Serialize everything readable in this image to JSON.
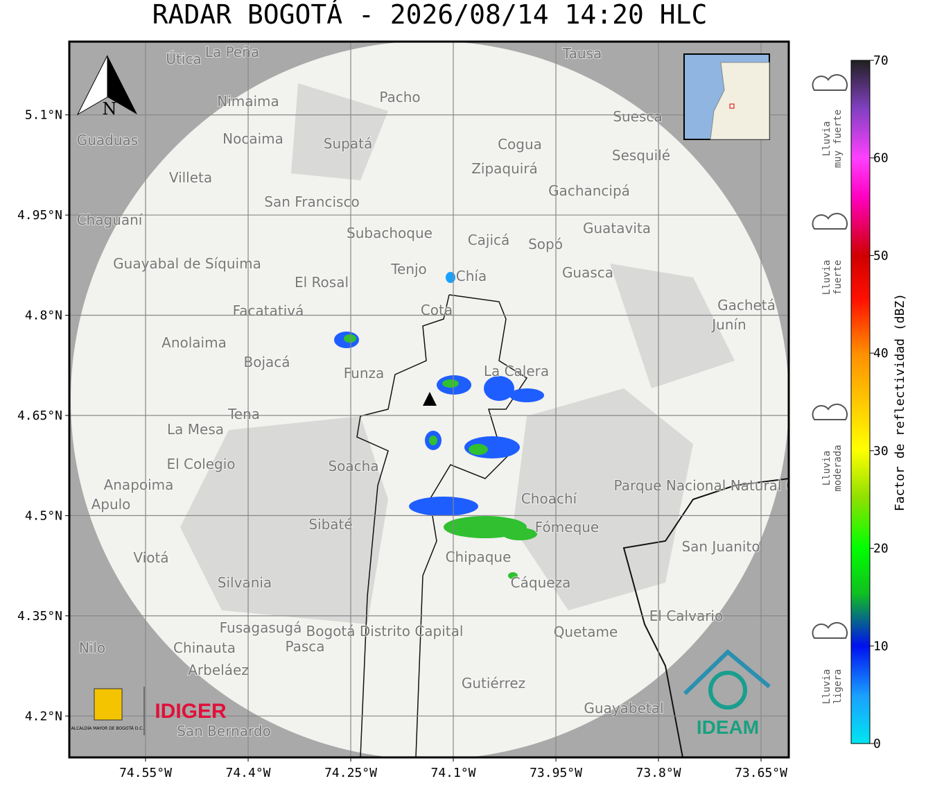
{
  "title": "RADAR BOGOTÁ - 2026/08/14 14:20 HLC",
  "map": {
    "xlim": [
      -74.6615,
      -73.6095
    ],
    "ylim": [
      4.138,
      5.2097
    ],
    "xticks": [
      {
        "value": -74.55,
        "label": "74.55°W"
      },
      {
        "value": -74.4,
        "label": "74.4°W"
      },
      {
        "value": -74.25,
        "label": "74.25°W"
      },
      {
        "value": -74.1,
        "label": "74.1°W"
      },
      {
        "value": -73.95,
        "label": "73.95°W"
      },
      {
        "value": -73.8,
        "label": "73.8°W"
      },
      {
        "value": -73.65,
        "label": "73.65°W"
      }
    ],
    "yticks": [
      {
        "value": 5.1,
        "label": "5.1°N"
      },
      {
        "value": 4.95,
        "label": "4.95°N"
      },
      {
        "value": 4.8,
        "label": "4.8°N"
      },
      {
        "value": 4.65,
        "label": "4.65°N"
      },
      {
        "value": 4.5,
        "label": "4.5°N"
      },
      {
        "value": 4.35,
        "label": "4.35°N"
      },
      {
        "value": 4.2,
        "label": "4.2°N"
      }
    ],
    "north": "N",
    "places": [
      "La Peña",
      "Útica",
      "Tausa",
      "Pacho",
      "Nimaima",
      "Nocaima",
      "Supatá",
      "Guaduas",
      "Suesca",
      "Cogua",
      "Sesquilé",
      "Zipaquirá",
      "Villeta",
      "Gachancipá",
      "San Francisco",
      "Chaguaní",
      "Guatavita",
      "Subachoque",
      "Cajicá",
      "Sopó",
      "Guayabal de Síquima",
      "Tenjo",
      "Chía",
      "Guasca",
      "El Rosal",
      "Cota",
      "Facatativá",
      "Gachetá",
      "Junín",
      "Anolaima",
      "Bojacá",
      "Funza",
      "La Calera",
      "Tena",
      "La Mesa",
      "El Colegio",
      "Soacha",
      "Parque Nacional Natural Chingaza",
      "Anapoima",
      "Apulo",
      "Choachí",
      "Sibaté",
      "Fómeque",
      "San Juanito",
      "Viotá",
      "Chipaque",
      "Silvania",
      "Cáqueza",
      "El Calvario",
      "Fusagasugá",
      "Bogotá Distrito Capital",
      "Quetame",
      "Chinauta",
      "Pasca",
      "Nilo",
      "Arbeláez",
      "Gutiérrez",
      "Guayabetal",
      "San Bernardo"
    ]
  },
  "logos": {
    "alcaldia": "ALCALDÍA MAYOR DE BOGOTÁ D.C.",
    "idiger": "IDIGER",
    "ideam": "IDEAM"
  },
  "colorbar": {
    "label": "Factor de reflectividad (dBZ)",
    "lim": [
      0,
      70
    ],
    "ticks": [
      0,
      10,
      20,
      30,
      40,
      50,
      60,
      70
    ],
    "categories": [
      [
        "Lluvia",
        "muy fuerte"
      ],
      [
        "Lluvia",
        "fuerte"
      ],
      [
        "Lluvia",
        "moderada"
      ],
      [
        "Lluvia",
        "ligera"
      ]
    ]
  }
}
